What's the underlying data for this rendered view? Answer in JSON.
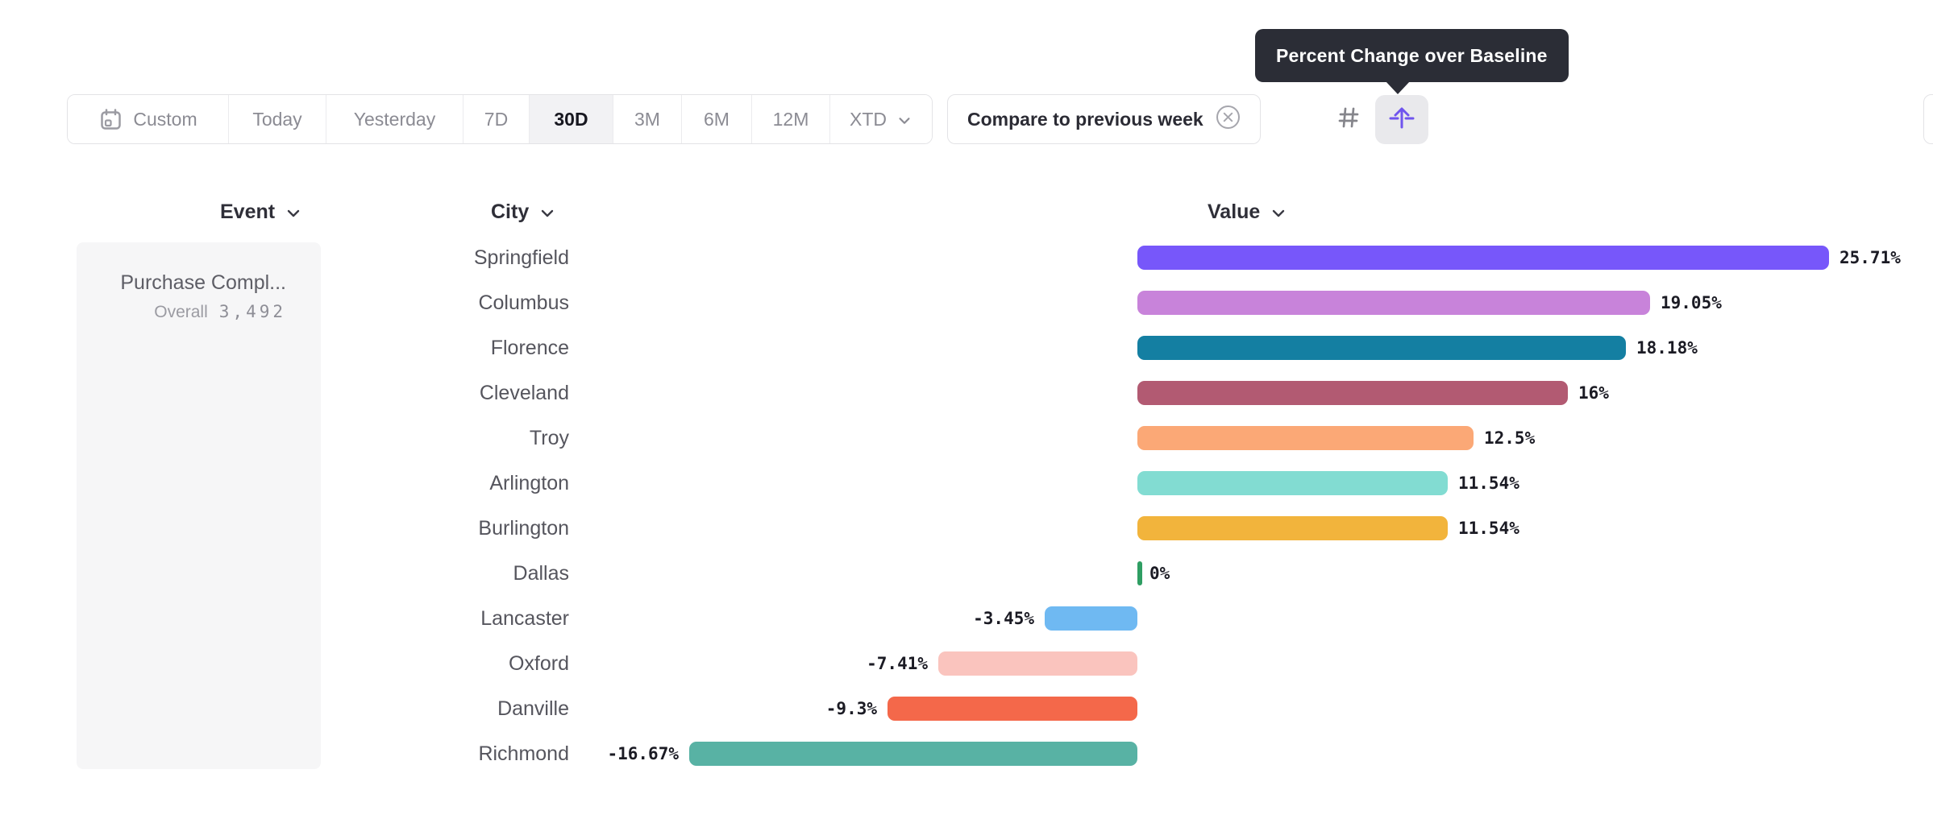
{
  "tooltip": {
    "text": "Percent Change over Baseline"
  },
  "toolbar": {
    "items": [
      {
        "label": "Custom",
        "icon": "calendar-icon",
        "selected": false
      },
      {
        "label": "Today",
        "selected": false
      },
      {
        "label": "Yesterday",
        "selected": false
      },
      {
        "label": "7D",
        "selected": false
      },
      {
        "label": "30D",
        "selected": true
      },
      {
        "label": "3M",
        "selected": false
      },
      {
        "label": "6M",
        "selected": false
      },
      {
        "label": "12M",
        "selected": false
      },
      {
        "label": "XTD",
        "icon": "chevron-down-icon",
        "selected": false
      }
    ]
  },
  "compare_chip": {
    "label": "Compare to previous week",
    "close_icon": "circle-x-icon"
  },
  "view_toggle": {
    "options": [
      {
        "icon": "number-sign-icon",
        "selected": false,
        "color": "#85858b"
      },
      {
        "icon": "percent-baseline-icon",
        "selected": true,
        "color": "#6f54ee"
      }
    ]
  },
  "columns": {
    "event": "Event",
    "city": "City",
    "value": "Value"
  },
  "event_panel": {
    "event_name": "Purchase Compl...",
    "overall_label": "Overall",
    "overall_value": "3,492"
  },
  "chart_data": {
    "type": "bar",
    "orientation": "horizontal",
    "title": "Percent Change over Baseline by City",
    "xlabel": "Value",
    "ylabel": "City",
    "unit": "%",
    "baseline": 0,
    "xlim": [
      -16.67,
      25.71
    ],
    "grid": false,
    "categories": [
      "Springfield",
      "Columbus",
      "Florence",
      "Cleveland",
      "Troy",
      "Arlington",
      "Burlington",
      "Dallas",
      "Lancaster",
      "Oxford",
      "Danville",
      "Richmond"
    ],
    "values": [
      25.71,
      19.05,
      18.18,
      16,
      12.5,
      11.54,
      11.54,
      0,
      -3.45,
      -7.41,
      -9.3,
      -16.67
    ],
    "value_labels": [
      "25.71%",
      "19.05%",
      "18.18%",
      "16%",
      "12.5%",
      "11.54%",
      "11.54%",
      "0%",
      "-3.45%",
      "-7.41%",
      "-9.3%",
      "-16.67%"
    ],
    "bar_colors": [
      "#7757fa",
      "#c883da",
      "#147fa2",
      "#b25a72",
      "#fba876",
      "#82dcd2",
      "#f2b43c",
      "#2f9e63",
      "#6fb9f2",
      "#fac4be",
      "#f4684a",
      "#58b2a4"
    ]
  }
}
